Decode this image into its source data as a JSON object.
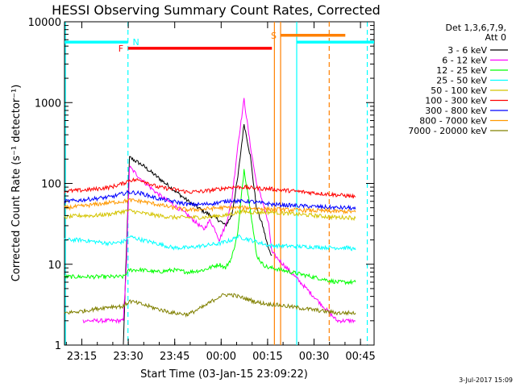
{
  "chart_data": {
    "type": "line",
    "title": "HESSI Observing Summary Count Rates, Corrected",
    "xlabel": "Start Time (03-Jan-15 23:09:22)",
    "ylabel": "Corrected Count Rate (s⁻¹ detector⁻¹)",
    "y_scale": "log",
    "ylim": [
      1,
      10000
    ],
    "x_range_minutes": [
      0,
      100
    ],
    "x_ticks": [
      {
        "label": "23:15",
        "min": 5.6
      },
      {
        "label": "23:30",
        "min": 20.6
      },
      {
        "label": "23:45",
        "min": 35.6
      },
      {
        "label": "00:00",
        "min": 50.6
      },
      {
        "label": "00:15",
        "min": 65.6
      },
      {
        "label": "00:30",
        "min": 80.6
      },
      {
        "label": "00:45",
        "min": 95.6
      }
    ],
    "y_ticks": [
      {
        "label": "1",
        "value": 1
      },
      {
        "label": "10",
        "value": 10
      },
      {
        "label": "100",
        "value": 100
      },
      {
        "label": "1000",
        "value": 1000
      },
      {
        "label": "10000",
        "value": 10000
      }
    ],
    "legend_header": [
      "Det 1,3,6,7,9,",
      "Att 0"
    ],
    "legend_position": "right",
    "series": [
      {
        "name": "3 - 6 keV",
        "color": "#000000",
        "points": [
          [
            19,
            1
          ],
          [
            21,
            210
          ],
          [
            25,
            170
          ],
          [
            30,
            120
          ],
          [
            35,
            85
          ],
          [
            40,
            60
          ],
          [
            45,
            45
          ],
          [
            50,
            35
          ],
          [
            52,
            30
          ],
          [
            54,
            40
          ],
          [
            56,
            120
          ],
          [
            58,
            550
          ],
          [
            60,
            220
          ],
          [
            62,
            50
          ],
          [
            64,
            30
          ],
          [
            66,
            15
          ],
          [
            67,
            13
          ]
        ]
      },
      {
        "name": "6 - 12 keV",
        "color": "#ff00ff",
        "points": [
          [
            6,
            2
          ],
          [
            8,
            2
          ],
          [
            10,
            2
          ],
          [
            19,
            2
          ],
          [
            20,
            10
          ],
          [
            21,
            160
          ],
          [
            25,
            110
          ],
          [
            30,
            75
          ],
          [
            35,
            55
          ],
          [
            40,
            40
          ],
          [
            45,
            27
          ],
          [
            47,
            35
          ],
          [
            49,
            25
          ],
          [
            50,
            20
          ],
          [
            52,
            30
          ],
          [
            54,
            60
          ],
          [
            56,
            300
          ],
          [
            58,
            1100
          ],
          [
            60,
            300
          ],
          [
            62,
            100
          ],
          [
            64,
            60
          ],
          [
            66,
            30
          ],
          [
            67,
            14
          ],
          [
            88,
            2
          ],
          [
            90,
            2
          ],
          [
            92,
            2
          ],
          [
            94,
            2
          ]
        ]
      },
      {
        "name": "12 - 25 keV",
        "color": "#00ff00",
        "points": [
          [
            0,
            7
          ],
          [
            5,
            7
          ],
          [
            10,
            7
          ],
          [
            15,
            7
          ],
          [
            19,
            7
          ],
          [
            21,
            8.5
          ],
          [
            25,
            8.5
          ],
          [
            30,
            8
          ],
          [
            35,
            8.5
          ],
          [
            40,
            8
          ],
          [
            45,
            8.5
          ],
          [
            50,
            10
          ],
          [
            52,
            9
          ],
          [
            54,
            12
          ],
          [
            56,
            25
          ],
          [
            58,
            150
          ],
          [
            60,
            50
          ],
          [
            62,
            13
          ],
          [
            64,
            10
          ],
          [
            66,
            9
          ],
          [
            67,
            9
          ],
          [
            88,
            6
          ],
          [
            90,
            6
          ],
          [
            92,
            6
          ],
          [
            94,
            6
          ]
        ]
      },
      {
        "name": "25 - 50 keV",
        "color": "#00ffff",
        "points": [
          [
            0,
            20
          ],
          [
            5,
            20
          ],
          [
            10,
            19
          ],
          [
            15,
            18
          ],
          [
            19,
            19
          ],
          [
            21,
            22
          ],
          [
            25,
            20
          ],
          [
            30,
            18
          ],
          [
            35,
            16
          ],
          [
            40,
            16
          ],
          [
            45,
            17
          ],
          [
            50,
            18
          ],
          [
            52,
            19
          ],
          [
            54,
            20
          ],
          [
            56,
            22
          ],
          [
            58,
            21
          ],
          [
            60,
            20
          ],
          [
            62,
            19
          ],
          [
            64,
            18
          ],
          [
            66,
            17
          ],
          [
            67,
            17
          ],
          [
            88,
            16
          ],
          [
            92,
            16
          ],
          [
            94,
            15
          ]
        ]
      },
      {
        "name": "50 - 100 keV",
        "color": "#d4c400",
        "points": [
          [
            0,
            38
          ],
          [
            5,
            40
          ],
          [
            10,
            40
          ],
          [
            15,
            42
          ],
          [
            19,
            45
          ],
          [
            21,
            46
          ],
          [
            25,
            43
          ],
          [
            30,
            40
          ],
          [
            35,
            38
          ],
          [
            40,
            38
          ],
          [
            45,
            38
          ],
          [
            50,
            40
          ],
          [
            52,
            40
          ],
          [
            54,
            42
          ],
          [
            56,
            44
          ],
          [
            58,
            45
          ],
          [
            60,
            44
          ],
          [
            62,
            44
          ],
          [
            64,
            44
          ],
          [
            66,
            44
          ],
          [
            67,
            44
          ],
          [
            88,
            38
          ],
          [
            92,
            38
          ],
          [
            94,
            37
          ]
        ]
      },
      {
        "name": "100 - 300 keV",
        "color": "#ff0000",
        "points": [
          [
            0,
            80
          ],
          [
            5,
            82
          ],
          [
            10,
            85
          ],
          [
            15,
            90
          ],
          [
            19,
            100
          ],
          [
            21,
            110
          ],
          [
            25,
            110
          ],
          [
            30,
            90
          ],
          [
            35,
            85
          ],
          [
            40,
            78
          ],
          [
            45,
            80
          ],
          [
            50,
            85
          ],
          [
            52,
            88
          ],
          [
            54,
            90
          ],
          [
            56,
            90
          ],
          [
            58,
            90
          ],
          [
            60,
            88
          ],
          [
            62,
            88
          ],
          [
            64,
            86
          ],
          [
            66,
            86
          ],
          [
            67,
            85
          ],
          [
            88,
            72
          ],
          [
            92,
            70
          ],
          [
            94,
            68
          ]
        ]
      },
      {
        "name": "300 - 800 keV",
        "color": "#0000ff",
        "points": [
          [
            0,
            60
          ],
          [
            5,
            62
          ],
          [
            10,
            65
          ],
          [
            15,
            68
          ],
          [
            19,
            75
          ],
          [
            21,
            78
          ],
          [
            25,
            75
          ],
          [
            30,
            65
          ],
          [
            35,
            60
          ],
          [
            40,
            55
          ],
          [
            45,
            55
          ],
          [
            50,
            58
          ],
          [
            52,
            60
          ],
          [
            54,
            62
          ],
          [
            56,
            60
          ],
          [
            58,
            60
          ],
          [
            60,
            60
          ],
          [
            62,
            58
          ],
          [
            64,
            57
          ],
          [
            66,
            56
          ],
          [
            67,
            55
          ],
          [
            88,
            50
          ],
          [
            92,
            50
          ],
          [
            94,
            48
          ]
        ]
      },
      {
        "name": "800 - 7000 keV",
        "color": "#ff9900",
        "points": [
          [
            0,
            50
          ],
          [
            5,
            52
          ],
          [
            10,
            55
          ],
          [
            15,
            58
          ],
          [
            19,
            60
          ],
          [
            21,
            62
          ],
          [
            25,
            60
          ],
          [
            30,
            55
          ],
          [
            35,
            50
          ],
          [
            40,
            47
          ],
          [
            45,
            48
          ],
          [
            50,
            50
          ],
          [
            52,
            50
          ],
          [
            54,
            50
          ],
          [
            56,
            50
          ],
          [
            58,
            50
          ],
          [
            60,
            50
          ],
          [
            62,
            49
          ],
          [
            64,
            49
          ],
          [
            66,
            48
          ],
          [
            67,
            48
          ],
          [
            88,
            45
          ],
          [
            92,
            45
          ],
          [
            94,
            44
          ]
        ]
      },
      {
        "name": "7000 - 20000 keV",
        "color": "#808000",
        "points": [
          [
            0,
            2.5
          ],
          [
            5,
            2.6
          ],
          [
            10,
            2.8
          ],
          [
            15,
            3
          ],
          [
            19,
            3
          ],
          [
            21,
            3.5
          ],
          [
            25,
            3.2
          ],
          [
            30,
            2.8
          ],
          [
            35,
            2.5
          ],
          [
            40,
            2.4
          ],
          [
            45,
            3
          ],
          [
            50,
            4
          ],
          [
            52,
            4.2
          ],
          [
            54,
            4.2
          ],
          [
            56,
            4
          ],
          [
            58,
            3.8
          ],
          [
            60,
            3.6
          ],
          [
            62,
            3.4
          ],
          [
            64,
            3.3
          ],
          [
            66,
            3.2
          ],
          [
            67,
            3.2
          ],
          [
            88,
            2.5
          ],
          [
            92,
            2.5
          ],
          [
            94,
            2.5
          ]
        ]
      }
    ],
    "bars": [
      {
        "label": "",
        "color": "#00ffff",
        "start": 0,
        "end": 20.5,
        "y": 5600
      },
      {
        "label": "N",
        "color": "#00ffff",
        "label_x": 22
      },
      {
        "label": "F",
        "color": "#ff0000",
        "start": 20.5,
        "end": 67,
        "y": 4700
      },
      {
        "label": "S",
        "color": "#ff8000",
        "start": 69.8,
        "end": 90.7,
        "y": 6800
      },
      {
        "label": "",
        "color": "#00ffff",
        "start": 75,
        "end": 100,
        "y": 5600
      }
    ],
    "vlines": [
      {
        "x": 0.3,
        "color": "#00ffff",
        "dash": false
      },
      {
        "x": 20.5,
        "color": "#00ffff",
        "dash": true
      },
      {
        "x": 67.8,
        "color": "#ff8000",
        "dash": false
      },
      {
        "x": 69.8,
        "color": "#ff8000",
        "dash": false
      },
      {
        "x": 75.0,
        "color": "#00ffff",
        "dash": false
      },
      {
        "x": 85.5,
        "color": "#ff8000",
        "dash": true
      },
      {
        "x": 97.8,
        "color": "#00ffff",
        "dash": true
      }
    ],
    "gaps": [
      [
        67.5,
        88
      ]
    ]
  },
  "footer_date": "3-Jul-2017 15:09"
}
